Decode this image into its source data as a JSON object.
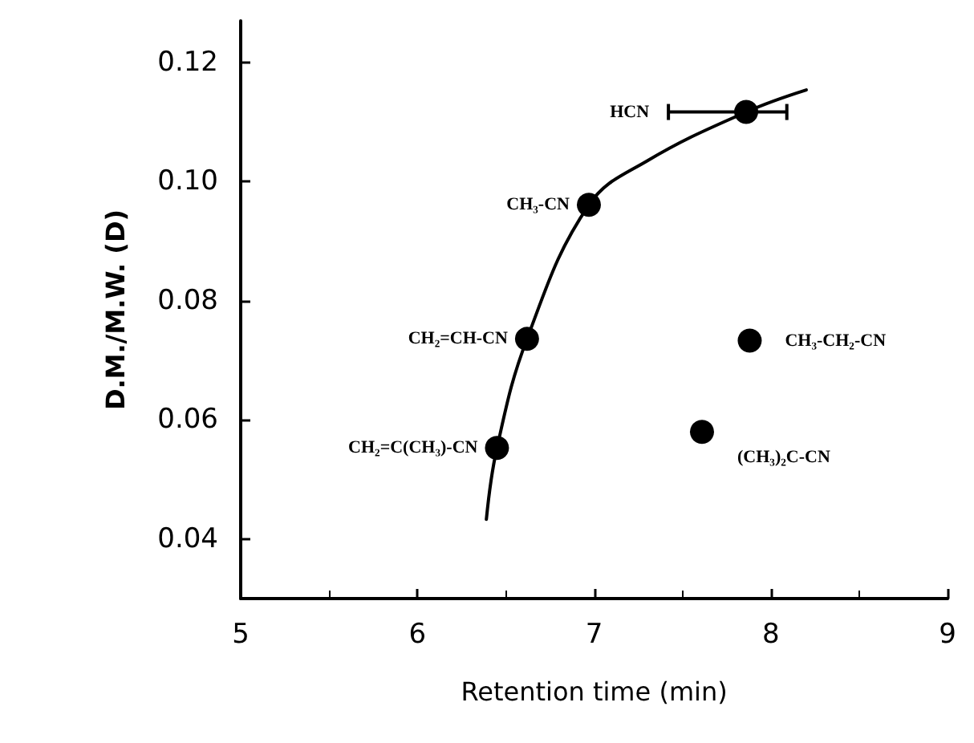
{
  "chart_data": {
    "type": "scatter",
    "xlabel": "Retention time (min)",
    "ylabel": "D.M./M.W. (D)",
    "xlim": [
      5,
      9
    ],
    "xticks": [
      5,
      6,
      7,
      8,
      9
    ],
    "ylim": [
      0.03,
      0.127
    ],
    "yticks": [
      0.04,
      0.06,
      0.08,
      {
        "value": 0.1,
        "label": "0.10"
      },
      0.12
    ],
    "marker": "circle",
    "series": [
      {
        "color": "#000000",
        "x": [
          7.86,
          6.97,
          6.62,
          7.88,
          6.45,
          7.61
        ],
        "values": [
          0.1117,
          0.0961,
          0.0736,
          0.0733,
          0.0553,
          0.058
        ],
        "xerrors": [
          [
            7.42,
            8.09
          ],
          null,
          null,
          null,
          null,
          null
        ]
      },
      {
        "type": "line",
        "color": "#000000",
        "marker": "none",
        "line_style": "solid",
        "x": [
          6.39,
          6.45,
          6.62,
          6.97,
          7.3,
          7.86,
          8.2
        ],
        "values": [
          0.0433,
          0.0553,
          0.0736,
          0.0961,
          0.1035,
          0.1117,
          0.1154
        ]
      }
    ],
    "annotations": [
      {
        "text": "HCN",
        "x": 7.42,
        "y": 0.1117
      },
      {
        "text": "CH₃-CN",
        "x": 6.97,
        "y": 0.0961
      },
      {
        "text": "CH₂=CH-CN",
        "x": 6.62,
        "y": 0.0736
      },
      {
        "text": "CH₃-CH₂-CN",
        "x": 7.88,
        "y": 0.0733
      },
      {
        "text": "CH₂=C(CH₃)-CN",
        "x": 6.45,
        "y": 0.0553
      },
      {
        "text": "(CH₃)₂C-CN",
        "x": 7.61,
        "y": 0.058
      }
    ]
  }
}
